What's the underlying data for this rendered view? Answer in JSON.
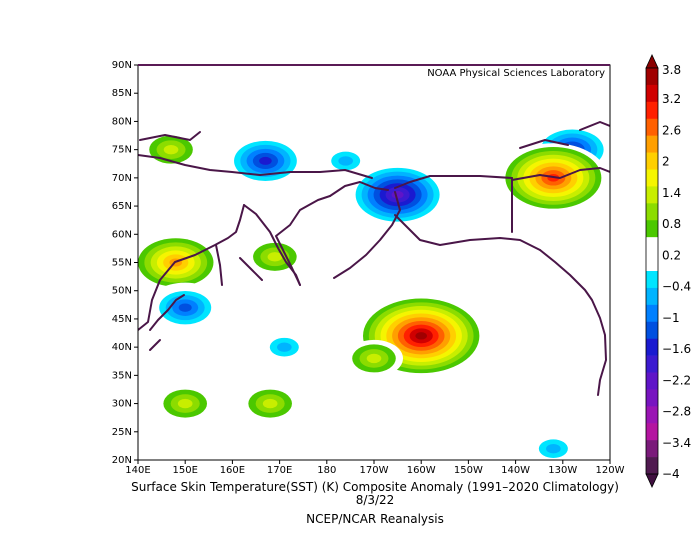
{
  "credit": "NOAA Physical Sciences Laboratory",
  "caption": {
    "line1": "Surface Skin Temperature(SST) (K) Composite Anomaly (1991–2020 Climatology)",
    "line2": "8/3/22",
    "line3": "NCEP/NCAR Reanalysis"
  },
  "lat_ticks": [
    "20N",
    "25N",
    "30N",
    "35N",
    "40N",
    "45N",
    "50N",
    "55N",
    "60N",
    "65N",
    "70N",
    "75N",
    "80N",
    "85N",
    "90N"
  ],
  "lon_ticks": [
    "140E",
    "150E",
    "160E",
    "170E",
    "180",
    "170W",
    "160W",
    "150W",
    "140W",
    "130W",
    "120W"
  ],
  "colorbar": {
    "labels": [
      "3.8",
      "3.2",
      "2.6",
      "2",
      "1.4",
      "0.8",
      "0.2",
      "−0.4",
      "−1",
      "−1.6",
      "−2.2",
      "−2.8",
      "−3.4",
      "−4"
    ],
    "colors": [
      "#a00000",
      "#d00000",
      "#ff2000",
      "#ff6000",
      "#ff9f00",
      "#ffcf00",
      "#f5f500",
      "#c8ee00",
      "#8cdc00",
      "#4bc800",
      "#ffffff",
      "#ffffff",
      "#00e5ff",
      "#00b4ff",
      "#0080ff",
      "#0050e0",
      "#1a1ad0",
      "#3c1ad0",
      "#5f14c8",
      "#7814c0",
      "#9a14b4",
      "#b414a0",
      "#7a1a7a",
      "#501a50"
    ]
  },
  "chart_data": {
    "type": "heatmap",
    "xlim": [
      140,
      240
    ],
    "ylim": [
      20,
      90
    ],
    "units": "K",
    "levels": [
      -4,
      -3.4,
      -2.8,
      -2.2,
      -1.6,
      -1,
      -0.4,
      0.2,
      0.8,
      1.4,
      2,
      2.6,
      3.2,
      3.8
    ],
    "background_value": 0.5,
    "anomaly_centers": [
      {
        "lon": 200,
        "lat": 42,
        "value": 3.8
      },
      {
        "lon": 190,
        "lat": 38,
        "value": 1.4
      },
      {
        "lon": 168,
        "lat": 30,
        "value": 1.4
      },
      {
        "lon": 150,
        "lat": 30,
        "value": 1.4
      },
      {
        "lon": 148,
        "lat": 55,
        "value": 2.6
      },
      {
        "lon": 169,
        "lat": 56,
        "value": 1.4
      },
      {
        "lon": 147,
        "lat": 75,
        "value": 1.4
      },
      {
        "lon": 150,
        "lat": 47,
        "value": -1.0
      },
      {
        "lon": 171,
        "lat": 40,
        "value": -0.6
      },
      {
        "lon": 167,
        "lat": 73,
        "value": -1.6
      },
      {
        "lon": 184,
        "lat": 73,
        "value": -0.6
      },
      {
        "lon": 232,
        "lat": 75,
        "value": -1.6
      },
      {
        "lon": 228,
        "lat": 22,
        "value": -0.6
      },
      {
        "lon": 195,
        "lat": 67,
        "value": -2.2
      },
      {
        "lon": 228,
        "lat": 70,
        "value": 3.2
      }
    ]
  }
}
